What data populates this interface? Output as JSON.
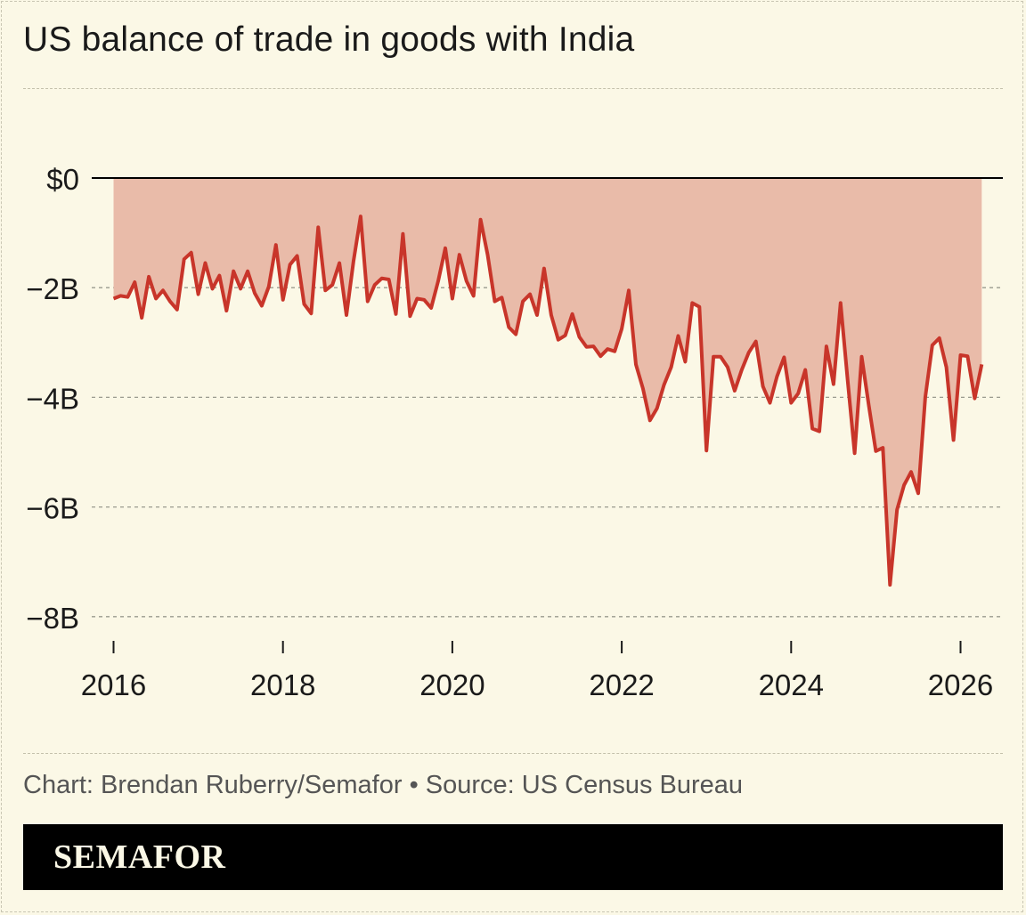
{
  "header": {
    "title": "US balance of trade in goods with India"
  },
  "footer": {
    "credit": "Chart: Brendan Ruberry/Semafor • Source: US Census Bureau",
    "logo": "SEMAFOR"
  },
  "colors": {
    "background": "#fbf8e6",
    "line": "#c8352a",
    "area": "#e9bba9",
    "zero_line": "#000000",
    "grid": "#9a9a8e",
    "footer_bar": "#000000"
  },
  "chart_data": {
    "type": "area",
    "title": "US balance of trade in goods with India",
    "xlabel": "",
    "ylabel": "",
    "ylim": [
      -8,
      0
    ],
    "xlim": [
      2016,
      2026.25
    ],
    "grid": true,
    "y_ticks": [
      {
        "value": 0,
        "label": "$0"
      },
      {
        "value": -2,
        "label": "−2B"
      },
      {
        "value": -4,
        "label": "−4B"
      },
      {
        "value": -6,
        "label": "−6B"
      },
      {
        "value": -8,
        "label": "−8B"
      }
    ],
    "x_ticks": [
      {
        "value": 2016,
        "label": "2016"
      },
      {
        "value": 2018,
        "label": "2018"
      },
      {
        "value": 2020,
        "label": "2020"
      },
      {
        "value": 2022,
        "label": "2022"
      },
      {
        "value": 2024,
        "label": "2024"
      },
      {
        "value": 2026,
        "label": "2026"
      }
    ],
    "start": "2016-01",
    "frequency": "monthly",
    "unit": "billion USD",
    "values": [
      -2.2,
      -2.15,
      -2.17,
      -1.9,
      -2.55,
      -1.8,
      -2.2,
      -2.05,
      -2.25,
      -2.4,
      -1.48,
      -1.36,
      -2.12,
      -1.55,
      -2.02,
      -1.78,
      -2.42,
      -1.7,
      -2.02,
      -1.7,
      -2.1,
      -2.33,
      -1.98,
      -1.22,
      -2.22,
      -1.58,
      -1.42,
      -2.3,
      -2.47,
      -0.9,
      -2.05,
      -1.95,
      -1.55,
      -2.5,
      -1.52,
      -0.7,
      -2.25,
      -1.95,
      -1.83,
      -1.85,
      -2.48,
      -1.02,
      -2.52,
      -2.2,
      -2.22,
      -2.37,
      -1.88,
      -1.28,
      -2.2,
      -1.4,
      -1.88,
      -2.15,
      -0.76,
      -1.4,
      -2.25,
      -2.18,
      -2.72,
      -2.85,
      -2.25,
      -2.12,
      -2.5,
      -1.65,
      -2.5,
      -2.95,
      -2.87,
      -2.48,
      -2.9,
      -3.08,
      -3.07,
      -3.25,
      -3.12,
      -3.16,
      -2.75,
      -2.05,
      -3.4,
      -3.84,
      -4.42,
      -4.2,
      -3.77,
      -3.45,
      -2.88,
      -3.35,
      -2.28,
      -2.35,
      -4.97,
      -3.26,
      -3.26,
      -3.45,
      -3.88,
      -3.5,
      -3.18,
      -2.98,
      -3.8,
      -4.1,
      -3.62,
      -3.27,
      -4.1,
      -3.93,
      -3.5,
      -4.57,
      -4.62,
      -3.07,
      -3.76,
      -2.28,
      -3.68,
      -5.02,
      -3.26,
      -4.15,
      -4.98,
      -4.92,
      -7.42,
      -6.05,
      -5.6,
      -5.36,
      -5.75,
      -4.0,
      -3.05,
      -2.92,
      -3.45,
      -4.78,
      -3.23,
      -3.25,
      -4.02,
      -3.4
    ]
  }
}
